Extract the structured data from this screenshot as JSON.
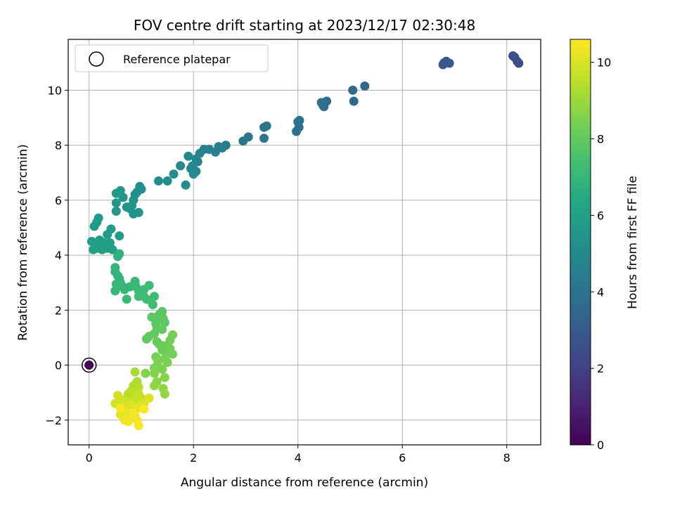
{
  "chart_data": {
    "type": "scatter",
    "title": "FOV centre drift starting at 2023/12/17 02:30:48",
    "xlabel": "Angular distance from reference (arcmin)",
    "ylabel": "Rotation from reference (arcmin)",
    "xlim": [
      -0.4,
      8.65
    ],
    "ylim": [
      -2.9,
      11.85
    ],
    "xticks": [
      0,
      2,
      4,
      6,
      8
    ],
    "yticks": [
      -2,
      0,
      2,
      4,
      6,
      8,
      10
    ],
    "tick_labels_x": [
      "0",
      "2",
      "4",
      "6",
      "8"
    ],
    "tick_labels_y": [
      "−2",
      "0",
      "2",
      "4",
      "6",
      "8",
      "10"
    ],
    "grid": true,
    "legend": {
      "placement": "top-left",
      "entries": [
        "Reference platepar"
      ]
    },
    "colorbar": {
      "label": "Hours from first FF file",
      "range": [
        0,
        10.6
      ],
      "ticks": [
        0,
        2,
        4,
        6,
        8,
        10
      ],
      "tick_labels": [
        "0",
        "2",
        "4",
        "6",
        "8",
        "10"
      ],
      "colormap": "viridis"
    },
    "reference_point": {
      "x": 0,
      "y": 0,
      "hours": 0.05
    },
    "points": [
      [
        8.12,
        11.25,
        2.5
      ],
      [
        8.15,
        11.2,
        2.5
      ],
      [
        8.2,
        11.05,
        2.5
      ],
      [
        8.23,
        10.98,
        2.5
      ],
      [
        6.8,
        11.0,
        2.9
      ],
      [
        6.84,
        11.05,
        2.9
      ],
      [
        6.9,
        10.98,
        2.9
      ],
      [
        6.78,
        10.93,
        2.9
      ],
      [
        5.28,
        10.15,
        3.6
      ],
      [
        5.05,
        10.0,
        3.6
      ],
      [
        5.07,
        9.6,
        3.6
      ],
      [
        4.45,
        9.55,
        3.8
      ],
      [
        4.5,
        9.4,
        3.8
      ],
      [
        4.55,
        9.6,
        3.8
      ],
      [
        4.48,
        9.45,
        3.8
      ],
      [
        4.0,
        8.85,
        4.0
      ],
      [
        4.02,
        8.65,
        4.0
      ],
      [
        3.97,
        8.5,
        4.0
      ],
      [
        4.03,
        8.9,
        4.0
      ],
      [
        3.4,
        8.7,
        4.2
      ],
      [
        3.35,
        8.65,
        4.2
      ],
      [
        3.35,
        8.25,
        4.2
      ],
      [
        3.05,
        8.3,
        4.2
      ],
      [
        2.95,
        8.15,
        4.3
      ],
      [
        2.62,
        8.0,
        4.5
      ],
      [
        2.55,
        7.9,
        4.5
      ],
      [
        2.48,
        7.95,
        4.6
      ],
      [
        2.42,
        7.75,
        4.6
      ],
      [
        2.3,
        7.85,
        4.6
      ],
      [
        2.2,
        7.85,
        4.7
      ],
      [
        2.12,
        7.7,
        4.7
      ],
      [
        2.08,
        7.4,
        4.8
      ],
      [
        2.05,
        7.5,
        4.8
      ],
      [
        1.98,
        7.25,
        4.8
      ],
      [
        1.9,
        7.6,
        4.9
      ],
      [
        1.95,
        7.15,
        4.9
      ],
      [
        2.05,
        7.05,
        4.9
      ],
      [
        2.0,
        6.95,
        5.0
      ],
      [
        1.75,
        7.25,
        5.0
      ],
      [
        1.62,
        6.95,
        5.1
      ],
      [
        1.85,
        6.55,
        5.1
      ],
      [
        1.5,
        6.7,
        5.2
      ],
      [
        1.33,
        6.7,
        5.2
      ],
      [
        1.0,
        6.4,
        5.3
      ],
      [
        0.97,
        6.5,
        5.3
      ],
      [
        0.92,
        6.3,
        5.3
      ],
      [
        0.88,
        6.2,
        5.3
      ],
      [
        0.85,
        6.0,
        5.4
      ],
      [
        0.82,
        5.8,
        5.4
      ],
      [
        0.78,
        5.7,
        5.4
      ],
      [
        0.72,
        5.75,
        5.5
      ],
      [
        0.85,
        5.5,
        5.5
      ],
      [
        0.95,
        5.55,
        5.5
      ],
      [
        0.65,
        6.1,
        5.5
      ],
      [
        0.52,
        6.25,
        5.6
      ],
      [
        0.52,
        5.9,
        5.6
      ],
      [
        0.52,
        5.6,
        5.6
      ],
      [
        0.6,
        6.35,
        5.6
      ],
      [
        0.18,
        5.35,
        5.7
      ],
      [
        0.15,
        5.2,
        5.7
      ],
      [
        0.1,
        5.05,
        5.7
      ],
      [
        0.42,
        4.95,
        5.8
      ],
      [
        0.35,
        4.75,
        5.8
      ],
      [
        0.58,
        4.7,
        5.8
      ],
      [
        0.05,
        4.5,
        5.9
      ],
      [
        0.12,
        4.4,
        5.9
      ],
      [
        0.2,
        4.55,
        5.9
      ],
      [
        0.28,
        4.45,
        5.9
      ],
      [
        0.4,
        4.45,
        5.9
      ],
      [
        0.35,
        4.25,
        6.0
      ],
      [
        0.25,
        4.2,
        6.0
      ],
      [
        0.15,
        4.25,
        6.0
      ],
      [
        0.08,
        4.2,
        6.0
      ],
      [
        0.45,
        4.2,
        6.0
      ],
      [
        0.58,
        4.05,
        6.8
      ],
      [
        0.55,
        3.95,
        6.8
      ],
      [
        0.5,
        3.55,
        6.9
      ],
      [
        0.5,
        3.4,
        6.9
      ],
      [
        0.55,
        3.25,
        6.9
      ],
      [
        0.58,
        3.15,
        6.9
      ],
      [
        0.6,
        3.0,
        6.9
      ],
      [
        0.52,
        2.95,
        7.0
      ],
      [
        0.65,
        2.85,
        7.0
      ],
      [
        0.68,
        2.75,
        7.0
      ],
      [
        0.5,
        2.7,
        7.0
      ],
      [
        0.78,
        2.85,
        7.0
      ],
      [
        0.88,
        2.95,
        7.1
      ],
      [
        0.9,
        2.85,
        7.1
      ],
      [
        0.88,
        3.05,
        7.1
      ],
      [
        0.72,
        2.4,
        7.1
      ],
      [
        0.95,
        2.7,
        7.1
      ],
      [
        1.0,
        2.6,
        7.2
      ],
      [
        1.05,
        2.75,
        7.2
      ],
      [
        1.15,
        2.9,
        7.2
      ],
      [
        1.1,
        2.4,
        7.2
      ],
      [
        1.25,
        2.5,
        7.3
      ],
      [
        1.18,
        2.35,
        7.3
      ],
      [
        1.22,
        2.2,
        7.3
      ],
      [
        0.95,
        2.5,
        7.3
      ],
      [
        1.05,
        2.5,
        7.3
      ],
      [
        1.4,
        1.95,
        7.8
      ],
      [
        1.35,
        1.85,
        7.8
      ],
      [
        1.3,
        1.75,
        7.8
      ],
      [
        1.42,
        1.7,
        7.9
      ],
      [
        1.45,
        1.55,
        7.9
      ],
      [
        1.28,
        1.5,
        7.9
      ],
      [
        1.2,
        1.75,
        7.9
      ],
      [
        1.3,
        1.35,
        7.9
      ],
      [
        1.4,
        1.3,
        8.0
      ],
      [
        1.15,
        1.05,
        8.0
      ],
      [
        1.25,
        1.15,
        8.0
      ],
      [
        1.1,
        0.95,
        8.0
      ],
      [
        1.3,
        0.85,
        8.1
      ],
      [
        1.35,
        0.75,
        8.1
      ],
      [
        1.45,
        0.7,
        8.2
      ],
      [
        1.4,
        0.55,
        8.2
      ],
      [
        1.5,
        0.45,
        8.2
      ],
      [
        1.55,
        0.6,
        8.3
      ],
      [
        1.6,
        0.4,
        8.3
      ],
      [
        1.6,
        1.1,
        8.3
      ],
      [
        1.55,
        0.9,
        8.3
      ],
      [
        1.45,
        0.25,
        8.4
      ],
      [
        1.5,
        0.1,
        8.4
      ],
      [
        1.28,
        0.3,
        8.4
      ],
      [
        1.32,
        0.1,
        8.5
      ],
      [
        1.25,
        -0.1,
        8.5
      ],
      [
        1.4,
        -0.15,
        8.5
      ],
      [
        1.25,
        -0.3,
        8.6
      ],
      [
        1.08,
        -0.3,
        8.6
      ],
      [
        1.45,
        -0.45,
        8.7
      ],
      [
        1.3,
        -0.6,
        8.7
      ],
      [
        1.25,
        -0.75,
        8.8
      ],
      [
        1.42,
        -0.85,
        8.8
      ],
      [
        1.45,
        -1.05,
        8.9
      ],
      [
        0.88,
        -0.25,
        9.2
      ],
      [
        0.92,
        -0.6,
        9.3
      ],
      [
        0.85,
        -0.75,
        9.3
      ],
      [
        0.95,
        -0.8,
        9.4
      ],
      [
        0.8,
        -0.95,
        9.5
      ],
      [
        0.75,
        -1.05,
        9.5
      ],
      [
        0.95,
        -1.05,
        9.6
      ],
      [
        0.88,
        -1.15,
        9.6
      ],
      [
        1.0,
        -1.2,
        9.7
      ],
      [
        0.85,
        -1.3,
        9.7
      ],
      [
        0.7,
        -1.3,
        9.8
      ],
      [
        0.62,
        -1.25,
        9.8
      ],
      [
        0.55,
        -1.1,
        9.9
      ],
      [
        0.5,
        -1.4,
        9.9
      ],
      [
        0.68,
        -1.5,
        9.9
      ],
      [
        0.8,
        -1.45,
        10.0
      ],
      [
        0.95,
        -1.5,
        10.0
      ],
      [
        1.05,
        -1.4,
        10.0
      ],
      [
        1.15,
        -1.2,
        10.1
      ],
      [
        0.62,
        -1.65,
        10.1
      ],
      [
        0.72,
        -1.75,
        10.2
      ],
      [
        0.6,
        -1.8,
        10.2
      ],
      [
        0.9,
        -1.6,
        10.2
      ],
      [
        0.88,
        -1.85,
        10.3
      ],
      [
        0.8,
        -1.9,
        10.3
      ],
      [
        0.68,
        -2.0,
        10.3
      ],
      [
        0.75,
        -2.05,
        10.4
      ],
      [
        0.92,
        -2.0,
        10.4
      ],
      [
        0.95,
        -2.2,
        10.5
      ],
      [
        0.85,
        -1.75,
        10.5
      ],
      [
        0.6,
        -1.55,
        10.5
      ],
      [
        1.05,
        -1.6,
        10.6
      ]
    ]
  }
}
